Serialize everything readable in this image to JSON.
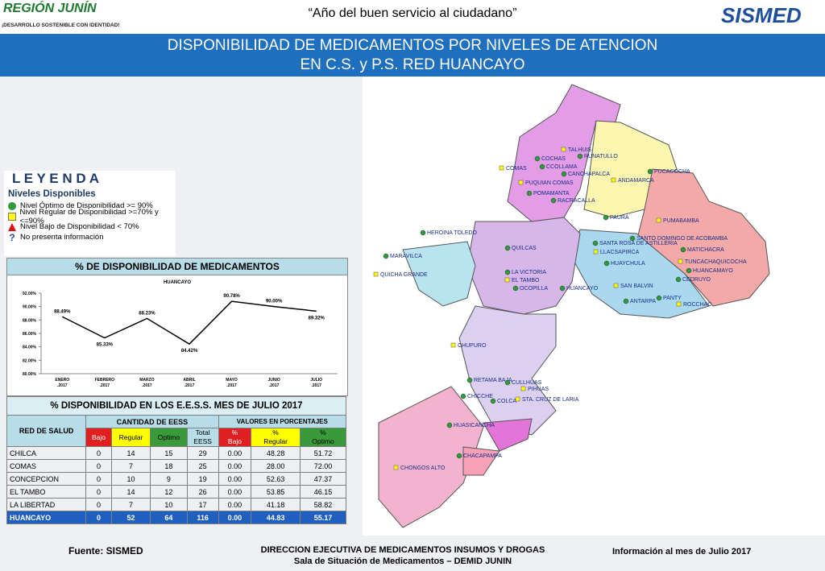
{
  "header": {
    "logo_left": "REGIÓN JUNÍN",
    "logo_left_tagline": "¡DESARROLLO SOSTENIBLE CON IDENTIDAD!",
    "motto": "“Año del buen servicio al ciudadano”",
    "logo_right": "SISMED"
  },
  "title": {
    "line1": "DISPONIBILIDAD DE MEDICAMENTOS POR NIVELES DE ATENCION",
    "line2": "EN  C.S. y P.S.   RED HUANCAYO"
  },
  "legend": {
    "title": "L E Y E N D A",
    "subtitle": "Niveles Disponibles",
    "items": [
      "Nivel Óptimo de Disponibilidad >= 90%",
      "Nivel Regular de Disponibilidad >=70% y <=90%",
      "Nivel Bajo de Disponibilidad < 70%",
      "No presenta información"
    ],
    "unknown_icon": "?"
  },
  "chart_data": {
    "type": "line",
    "panel_title": "% DE DISPONIBILIDAD DE MEDICAMENTOS",
    "title": "HUANCAYO",
    "categories": [
      "ENERO\n.2017",
      "FEBRERO\n.2017",
      "MARZO\n.2017",
      "ABRIL\n.2017",
      "MAYO\n.2017",
      "JUNIO\n.2017",
      "JULIO\n.2017"
    ],
    "values": [
      88.49,
      85.33,
      88.23,
      84.42,
      90.78,
      90.0,
      89.32
    ],
    "value_labels": [
      "88.49%",
      "85.33%",
      "88.23%",
      "84.42%",
      "90.78%",
      "90.00%",
      "89.32%"
    ],
    "color": "#000000",
    "ylim": [
      80,
      92
    ],
    "yticks": [
      {
        "value": 80,
        "label": "80.00%"
      },
      {
        "value": 82,
        "label": "82.00%"
      },
      {
        "value": 84,
        "label": "84.00%"
      },
      {
        "value": 86,
        "label": "86.00%"
      },
      {
        "value": 88,
        "label": "88.00%"
      },
      {
        "value": 90,
        "label": "90.00%"
      },
      {
        "value": 92,
        "label": "92.00%"
      }
    ]
  },
  "table": {
    "title": "% DISPONIBILIDAD EN LOS E.E.S.S. MES DE  JULIO 2017",
    "red_header": "RED DE SALUD",
    "group1": "CANTIDAD DE EESS",
    "group2": "VALORES EN PORCENTAJES",
    "columns": [
      "Bajo",
      "Regular",
      "Optimo",
      "Total\nEESS",
      "%\nBajo",
      "%\nRegular",
      "%\nOptimo"
    ],
    "rows": [
      [
        "CHILCA",
        "0",
        "14",
        "15",
        "29",
        "0.00",
        "48.28",
        "51.72"
      ],
      [
        "COMAS",
        "0",
        "7",
        "18",
        "25",
        "0.00",
        "28.00",
        "72.00"
      ],
      [
        "CONCEPCION",
        "0",
        "10",
        "9",
        "19",
        "0.00",
        "52.63",
        "47.37"
      ],
      [
        "EL TAMBO",
        "0",
        "14",
        "12",
        "26",
        "0.00",
        "53.85",
        "46.15"
      ],
      [
        "LA LIBERTAD",
        "0",
        "7",
        "10",
        "17",
        "0.00",
        "41.18",
        "58.82"
      ],
      [
        "HUANCAYO",
        "0",
        "52",
        "64",
        "116",
        "0.00",
        "44.83",
        "55.17"
      ]
    ]
  },
  "map": {
    "labels": [
      "TALHUIS",
      "RUNATULLO",
      "COCHAS",
      "COMAS",
      "CCOLLAMA",
      "CANCHAPALCA",
      "PUQUIAN COMAS",
      "POMAMANTA",
      "RACRACALLA",
      "ANDAMARCA",
      "PUCACOCHA",
      "PAURA",
      "PUMABAMBA",
      "SANTO DOMINGO DE ACOBAMBA",
      "SANTA ROSA DE ASTILLERIA",
      "LLACSAPIRCA",
      "HUAYCHULA",
      "MATICHACRA",
      "TUNCACHAQUICOCHA",
      "HUANCAMAYO",
      "CEDRUYO",
      "SAN BALVIN",
      "ANTARPA",
      "PANTY",
      "ROCCHAC",
      "HEROINA TOLEDO",
      "MARAVILCA",
      "QUICHA GRANDE",
      "QUILCAS",
      "LA VICTORIA",
      "EL TAMBO",
      "OCOPILLA",
      "HUANCAYO",
      "CHUPURO",
      "RETAMA BAJA",
      "CULLHUAS",
      "PIHUAS",
      "CHICCHE",
      "COLCA",
      "STA. CRUZ DE LARIA",
      "HUASICANCHA",
      "CHACAPAMPA",
      "CHONGOS ALTO"
    ]
  },
  "footer": {
    "source": "Fuente: SISMED",
    "org_line1": "DIRECCION EJECUTIVA DE MEDICAMENTOS INSUMOS Y DROGAS",
    "org_line2": "Sala de Situación de Medicamentos – DEMID JUNIN",
    "info": "Información al mes de Julio 2017"
  }
}
